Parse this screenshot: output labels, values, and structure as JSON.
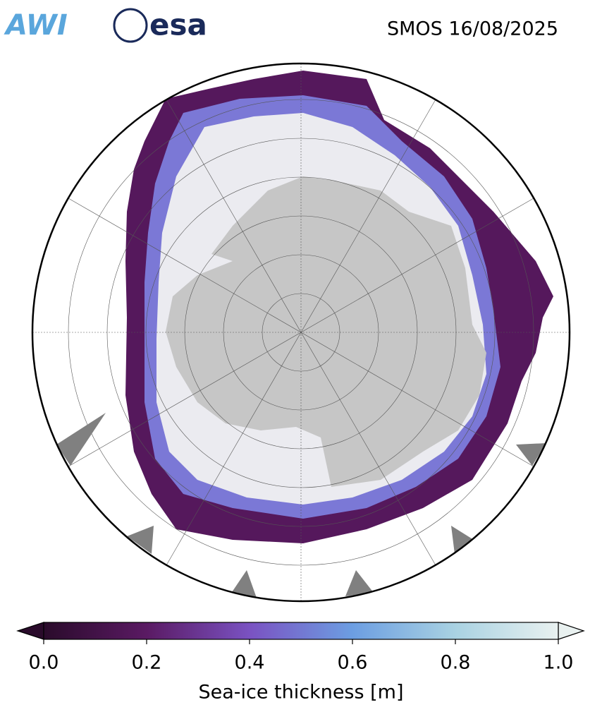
{
  "header": {
    "logos": [
      "AWI",
      "esa"
    ],
    "title": "SMOS 16/08/2025"
  },
  "colorbar": {
    "label": "Sea-ice thickness [m]",
    "lim": [
      0,
      1
    ],
    "ticks": [
      {
        "value": 0,
        "label": "0.0"
      },
      0.2,
      0.4,
      0.6,
      0.8,
      {
        "value": 1,
        "label": "1.0"
      }
    ],
    "colors": [
      "#2a0b2b",
      "#5a1a63",
      "#7a52c2",
      "#6c9ee2",
      "#a9d2e2",
      "#e9f1f0"
    ]
  }
}
